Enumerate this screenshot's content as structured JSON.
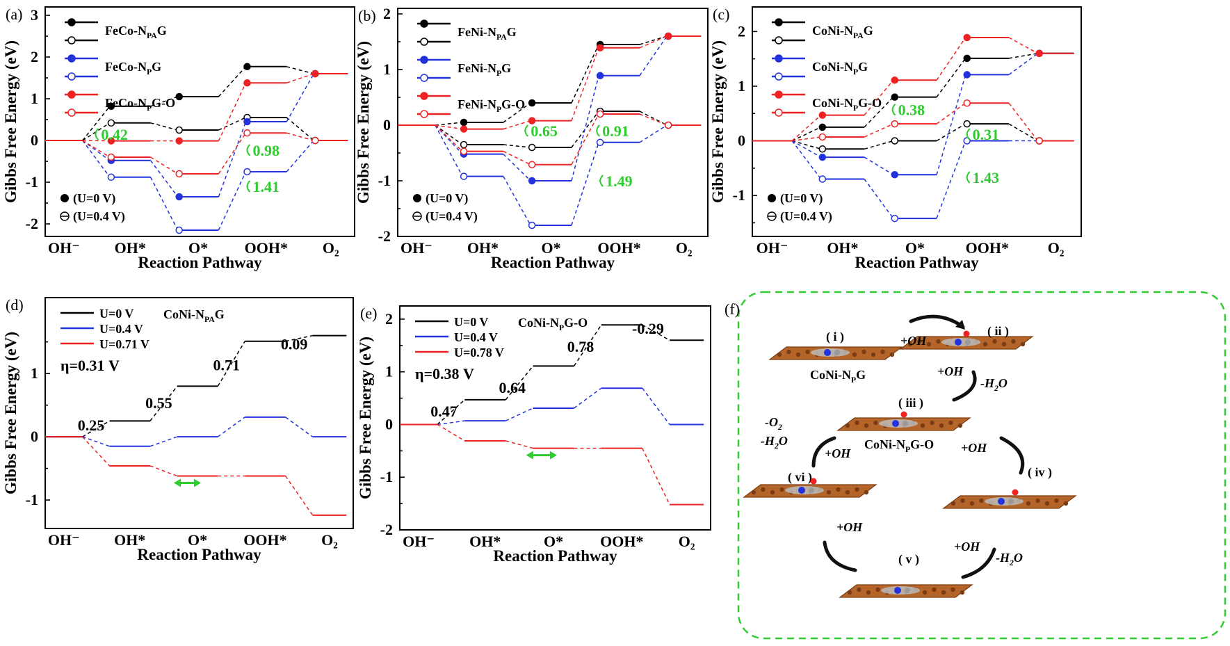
{
  "colors": {
    "black": "#000000",
    "blue": "#2233dd",
    "red": "#ee2222",
    "green": "#2ecc2e"
  },
  "xlabel": "Reaction Pathway",
  "ylabel": "Gibbs Free Energy (eV)",
  "legend_dots": {
    "filled": "(U=0 V)",
    "open": "(U=0.4 V)"
  },
  "chart_data": [
    {
      "panel": "(a)",
      "type": "line",
      "categories": [
        "OH⁻",
        "OH*",
        "O*",
        "OOH*",
        "O₂"
      ],
      "ylim": [
        -2.3,
        3.2
      ],
      "yticks": [
        -2,
        -1,
        0,
        1,
        2,
        3
      ],
      "series": [
        {
          "name": "FeCo-NPAG",
          "legend": [
            "FeCo-N",
            "PA",
            "G"
          ],
          "color": "black",
          "marker": "filled",
          "values": [
            0,
            0.82,
            1.05,
            1.77,
            1.6
          ]
        },
        {
          "name": "",
          "color": "black",
          "marker": "open",
          "values": [
            0,
            0.42,
            0.25,
            0.55,
            0
          ]
        },
        {
          "name": "FeCo-NPG",
          "legend": [
            "FeCo-N",
            "P",
            "G"
          ],
          "color": "blue",
          "marker": "filled",
          "values": [
            0,
            -0.48,
            -1.35,
            0.45,
            1.6
          ]
        },
        {
          "name": "",
          "color": "blue",
          "marker": "open",
          "values": [
            0,
            -0.88,
            -2.15,
            -0.75,
            0
          ]
        },
        {
          "name": "FeCo-NPG-O",
          "legend": [
            "FeCo-N",
            "P",
            "G-O"
          ],
          "color": "red",
          "marker": "filled",
          "values": [
            0,
            -0.01,
            -0.01,
            1.38,
            1.6
          ]
        },
        {
          "name": "",
          "color": "red",
          "marker": "open",
          "values": [
            0,
            -0.4,
            -0.8,
            0.18,
            0
          ]
        }
      ],
      "annotations": [
        {
          "text": "0.42",
          "x": 0.72,
          "y": 0.15
        },
        {
          "text": "0.98",
          "x": 2.95,
          "y": -0.23
        },
        {
          "text": "1.41",
          "x": 2.95,
          "y": -1.1
        }
      ]
    },
    {
      "panel": "(b)",
      "type": "line",
      "categories": [
        "OH⁻",
        "OH*",
        "O*",
        "OOH*",
        "O₂"
      ],
      "ylim": [
        -2.0,
        2.1
      ],
      "yticks": [
        -2,
        -1,
        0,
        1,
        2
      ],
      "series": [
        {
          "name": "FeNi-NPAG",
          "legend": [
            "FeNi-N",
            "PA",
            "G"
          ],
          "color": "black",
          "marker": "filled",
          "values": [
            0,
            0.05,
            0.4,
            1.45,
            1.6
          ]
        },
        {
          "name": "",
          "color": "black",
          "marker": "open",
          "values": [
            0,
            -0.35,
            -0.4,
            0.25,
            0
          ]
        },
        {
          "name": "FeNi-NPG",
          "legend": [
            "FeNi-N",
            "P",
            "G"
          ],
          "color": "blue",
          "marker": "filled",
          "values": [
            0,
            -0.52,
            -1.0,
            0.89,
            1.6
          ]
        },
        {
          "name": "",
          "color": "blue",
          "marker": "open",
          "values": [
            0,
            -0.92,
            -1.8,
            -0.31,
            0
          ]
        },
        {
          "name": "FeNi-NPG-O",
          "legend": [
            "FeNi-N",
            "P",
            "G-O"
          ],
          "color": "red",
          "marker": "filled",
          "values": [
            0,
            -0.07,
            0.08,
            1.39,
            1.6
          ]
        },
        {
          "name": "",
          "color": "red",
          "marker": "open",
          "values": [
            0,
            -0.47,
            -0.71,
            0.2,
            0
          ]
        }
      ],
      "annotations": [
        {
          "text": "0.65",
          "x": 1.85,
          "y": -0.1
        },
        {
          "text": "0.91",
          "x": 2.9,
          "y": -0.1
        },
        {
          "text": "1.49",
          "x": 2.95,
          "y": -1.0
        }
      ]
    },
    {
      "panel": "(c)",
      "type": "line",
      "categories": [
        "OH⁻",
        "OH*",
        "O*",
        "OOH*",
        "O₂"
      ],
      "ylim": [
        -1.75,
        2.45
      ],
      "yticks": [
        -1,
        0,
        1,
        2
      ],
      "series": [
        {
          "name": "CoNi-NPAG",
          "legend": [
            "CoNi-N",
            "PA",
            "G"
          ],
          "color": "black",
          "marker": "filled",
          "values": [
            0,
            0.25,
            0.8,
            1.51,
            1.6
          ]
        },
        {
          "name": "",
          "color": "black",
          "marker": "open",
          "values": [
            0,
            -0.15,
            0,
            0.31,
            0
          ]
        },
        {
          "name": "CoNi-NPG",
          "legend": [
            "CoNi-N",
            "P",
            "G"
          ],
          "color": "blue",
          "marker": "filled",
          "values": [
            0,
            -0.3,
            -0.62,
            1.21,
            1.6
          ]
        },
        {
          "name": "",
          "color": "blue",
          "marker": "open",
          "values": [
            0,
            -0.7,
            -1.42,
            0,
            0
          ]
        },
        {
          "name": "CoNi-NPG-O",
          "legend": [
            "CoNi-N",
            "P",
            "G-O"
          ],
          "color": "red",
          "marker": "filled",
          "values": [
            0,
            0.47,
            1.11,
            1.89,
            1.6
          ]
        },
        {
          "name": "",
          "color": "red",
          "marker": "open",
          "values": [
            0,
            0.07,
            0.31,
            0.69,
            0
          ]
        }
      ],
      "annotations": [
        {
          "text": "0.38",
          "x": 1.92,
          "y": 0.57
        },
        {
          "text": "0.31",
          "x": 2.95,
          "y": 0.12
        },
        {
          "text": "1.43",
          "x": 2.95,
          "y": -0.67
        }
      ]
    },
    {
      "panel": "(d)",
      "type": "line",
      "title": "CoNi-NPAG",
      "title_parts": [
        "CoNi-N",
        "PA",
        "G"
      ],
      "categories": [
        "OH⁻",
        "OH*",
        "O*",
        "OOH*",
        "O₂"
      ],
      "ylim": [
        -1.45,
        2.2
      ],
      "yticks": [
        -1,
        0,
        1
      ],
      "eta": "η=0.31 V",
      "series": [
        {
          "name": "U=0 V",
          "color": "black",
          "values": [
            0,
            0.25,
            0.8,
            1.51,
            1.6
          ]
        },
        {
          "name": "U=0.4 V",
          "color": "blue",
          "values": [
            0,
            -0.15,
            0,
            0.31,
            0
          ]
        },
        {
          "name": "U=0.71 V",
          "color": "red",
          "values": [
            0,
            -0.46,
            -0.62,
            -0.62,
            -1.24
          ]
        }
      ],
      "step_labels": [
        {
          "text": "0.25",
          "x": 0.48,
          "y": 0.1
        },
        {
          "text": "0.55",
          "x": 1.48,
          "y": 0.45
        },
        {
          "text": "0.71",
          "x": 2.48,
          "y": 1.05
        },
        {
          "text": "0.09",
          "x": 3.48,
          "y": 1.38
        }
      ],
      "arrow": {
        "x1": 1.9,
        "x2": 2.3,
        "y": -0.62
      }
    },
    {
      "panel": "(e)",
      "type": "line",
      "title": "CoNi-NPG-O",
      "title_parts": [
        "CoNi-N",
        "P",
        "G-O"
      ],
      "categories": [
        "OH⁻",
        "OH*",
        "O*",
        "OOH*",
        "O₂"
      ],
      "ylim": [
        -2.0,
        2.25
      ],
      "yticks": [
        -2,
        -1,
        0,
        1,
        2
      ],
      "eta": "η=0.38 V",
      "series": [
        {
          "name": "U=0 V",
          "color": "black",
          "values": [
            0,
            0.47,
            1.11,
            1.89,
            1.6
          ]
        },
        {
          "name": "U=0.4 V",
          "color": "blue",
          "values": [
            0,
            0.07,
            0.31,
            0.69,
            0
          ]
        },
        {
          "name": "U=0.78 V",
          "color": "red",
          "values": [
            0,
            -0.31,
            -0.45,
            -0.45,
            -1.52
          ]
        }
      ],
      "step_labels": [
        {
          "text": "0.47",
          "x": 0.45,
          "y": 0.15
        },
        {
          "text": "0.64",
          "x": 1.45,
          "y": 0.6
        },
        {
          "text": "0.78",
          "x": 2.45,
          "y": 1.38
        },
        {
          "text": "-0.29",
          "x": 3.4,
          "y": 1.72
        }
      ],
      "arrow": {
        "x1": 1.85,
        "x2": 2.3,
        "y": -0.45
      }
    }
  ],
  "panel_f": {
    "label": "(f)",
    "states": [
      "( i )",
      "( ii )",
      "( iii )",
      "( iv )",
      "( v )",
      "( vi )"
    ],
    "names": {
      "conipg": [
        "CoNi-N",
        "P",
        "G"
      ],
      "conipgo": [
        "CoNi-N",
        "P",
        "G-O"
      ]
    },
    "plus_oh": "+OH",
    "minus_h2o": "-H",
    "h2o_sub": "2",
    "h2o_tail": "O",
    "minus_o2": "-O",
    "o2_sub": "2"
  }
}
